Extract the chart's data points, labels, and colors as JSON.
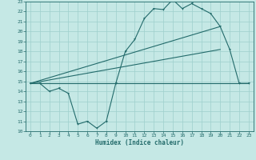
{
  "xlabel": "Humidex (Indice chaleur)",
  "xlim": [
    -0.5,
    23.5
  ],
  "ylim": [
    10,
    23
  ],
  "xticks": [
    0,
    1,
    2,
    3,
    4,
    5,
    6,
    7,
    8,
    9,
    10,
    11,
    12,
    13,
    14,
    15,
    16,
    17,
    18,
    19,
    20,
    21,
    22,
    23
  ],
  "yticks": [
    10,
    11,
    12,
    13,
    14,
    15,
    16,
    17,
    18,
    19,
    20,
    21,
    22,
    23
  ],
  "bg_color": "#c5e8e5",
  "grid_color": "#9ecfcc",
  "line_color": "#236b6b",
  "curve1_x": [
    0,
    1,
    2,
    3,
    4,
    5,
    6,
    7,
    8,
    9,
    10,
    11,
    12,
    13,
    14,
    15,
    16,
    17,
    18,
    19,
    20,
    21,
    22,
    23
  ],
  "curve1_y": [
    14.8,
    14.8,
    14.0,
    14.3,
    13.8,
    10.7,
    11.0,
    10.3,
    11.0,
    14.8,
    18.0,
    19.2,
    21.3,
    22.3,
    22.2,
    23.2,
    22.3,
    22.8,
    22.3,
    21.8,
    20.5,
    18.2,
    14.8,
    14.8
  ],
  "curve2_x": [
    0,
    23
  ],
  "curve2_y": [
    14.8,
    14.8
  ],
  "curve3_x": [
    0,
    20
  ],
  "curve3_y": [
    14.8,
    20.5
  ],
  "curve4_x": [
    0,
    20
  ],
  "curve4_y": [
    14.8,
    18.2
  ]
}
